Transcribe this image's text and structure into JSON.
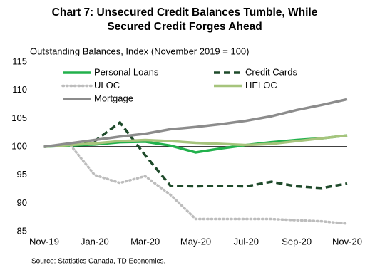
{
  "chart_data": {
    "type": "line",
    "title": [
      "Chart 7: Unsecured Credit Balances  Tumble,  While",
      "Secured Credit Forges Ahead"
    ],
    "y_label": "Outstanding Balances, Index (November 2019 = 100)",
    "source": "Source: Statistics Canada, TD Economics.",
    "categories": [
      "Nov-19",
      null,
      "Jan-20",
      null,
      "Mar-20",
      null,
      "May-20",
      null,
      "Jul-20",
      null,
      "Sep-20",
      null,
      "Nov-20"
    ],
    "ylim": [
      85,
      115
    ],
    "yticks": [
      85,
      90,
      95,
      100,
      105,
      110,
      115
    ],
    "x_axis_at": 100,
    "grid": false,
    "legend": "top-left",
    "series": [
      {
        "name": "Personal Loans",
        "color": "#22b14c",
        "dash": "solid",
        "values": [
          100,
          100.2,
          100.4,
          100.8,
          100.9,
          100.2,
          99,
          99.7,
          100.3,
          100.8,
          101.2,
          101.5,
          102
        ]
      },
      {
        "name": "Credit Cards",
        "color": "#1e4a2a",
        "dash": "dashed",
        "values": [
          100,
          100.5,
          101,
          104.3,
          98.5,
          93.1,
          93,
          93.1,
          93,
          93.8,
          93,
          92.7,
          93.5
        ]
      },
      {
        "name": "ULOC",
        "color": "#bdbdbd",
        "dash": "dotted",
        "values": [
          100,
          100.5,
          95,
          93.6,
          94.8,
          91.5,
          87.2,
          87.2,
          87.2,
          87.2,
          87,
          86.8,
          86.4
        ]
      },
      {
        "name": "HELOC",
        "color": "#a6c47c",
        "dash": "solid",
        "values": [
          100,
          100.3,
          100.6,
          101,
          101.2,
          101,
          100.7,
          100.5,
          100.3,
          100.5,
          101,
          101.5,
          102
        ]
      },
      {
        "name": "Mortgage",
        "color": "#8c8c8c",
        "dash": "solid",
        "values": [
          100,
          100.6,
          101.2,
          101.8,
          102.3,
          103.1,
          103.5,
          104,
          104.6,
          105.4,
          106.5,
          107.4,
          108.4
        ]
      }
    ]
  }
}
